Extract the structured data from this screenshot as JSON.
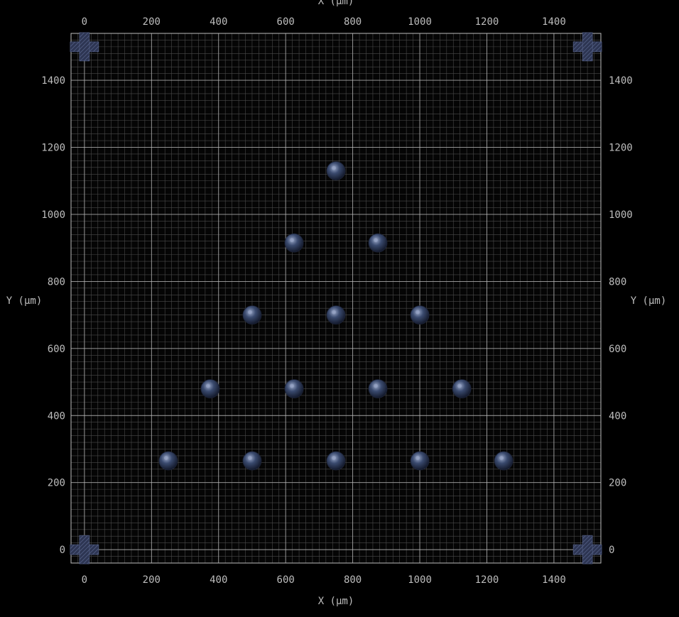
{
  "chart_data": {
    "type": "scatter",
    "xlabel": "X (µm)",
    "ylabel": "Y (µm)",
    "xlim": [
      -40,
      1540
    ],
    "ylim": [
      -40,
      1540
    ],
    "major_step": 200,
    "minor_step": 20,
    "grid": true,
    "xticks": [
      0,
      200,
      400,
      600,
      800,
      1000,
      1200,
      1400
    ],
    "yticks": [
      0,
      200,
      400,
      600,
      800,
      1000,
      1200,
      1400
    ],
    "xtick_labels": [
      "0",
      "200",
      "400",
      "600",
      "800",
      "1000",
      "1200",
      "1400"
    ],
    "ytick_labels": [
      "0",
      "200",
      "400",
      "600",
      "800",
      "1000",
      "1200",
      "1400"
    ],
    "points": [
      {
        "x": 750,
        "y": 1130
      },
      {
        "x": 625,
        "y": 915
      },
      {
        "x": 875,
        "y": 915
      },
      {
        "x": 500,
        "y": 700
      },
      {
        "x": 750,
        "y": 700
      },
      {
        "x": 1000,
        "y": 700
      },
      {
        "x": 375,
        "y": 480
      },
      {
        "x": 625,
        "y": 480
      },
      {
        "x": 875,
        "y": 480
      },
      {
        "x": 1125,
        "y": 480
      },
      {
        "x": 250,
        "y": 265
      },
      {
        "x": 500,
        "y": 265
      },
      {
        "x": 750,
        "y": 265
      },
      {
        "x": 1000,
        "y": 265
      },
      {
        "x": 1250,
        "y": 265
      }
    ],
    "fiducials": [
      {
        "x": 0,
        "y": 1500
      },
      {
        "x": 1500,
        "y": 1500
      },
      {
        "x": 0,
        "y": 0
      },
      {
        "x": 1500,
        "y": 0
      }
    ]
  },
  "colors": {
    "background": "#000000",
    "plot_background": "#050505",
    "major_grid": "#bdbdbd",
    "minor_grid": "#4a4a4a",
    "marker": "#3a4a6e",
    "marker_highlight": "#9aa8c8",
    "fiducial": "#3c4668",
    "text": "#bdbdbd"
  }
}
